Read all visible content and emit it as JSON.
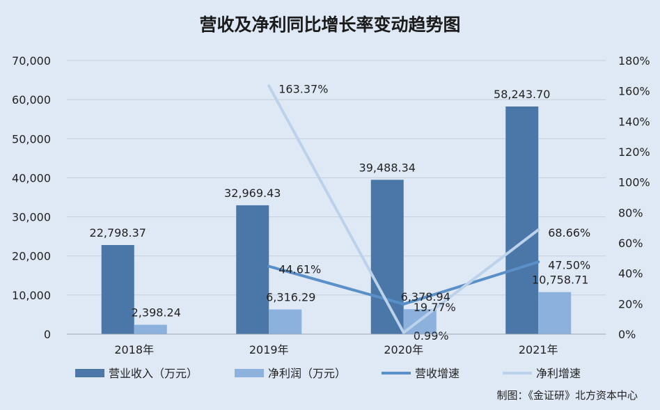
{
  "chart_data": {
    "type": "bar",
    "title": "营收及净利同比增长率变动趋势图",
    "categories": [
      "2018年",
      "2019年",
      "2020年",
      "2021年"
    ],
    "y_left": {
      "ticks": [
        "70,000",
        "60,000",
        "50,000",
        "40,000",
        "30,000",
        "20,000",
        "10,000",
        "0"
      ],
      "min": 0,
      "max": 70000
    },
    "y_right": {
      "ticks": [
        "180%",
        "160%",
        "140%",
        "120%",
        "100%",
        "80%",
        "60%",
        "40%",
        "20%",
        "0%"
      ],
      "min": 0,
      "max": 180
    },
    "bar_series": [
      {
        "name": "营业收入（万元）",
        "values": [
          22798.37,
          32969.43,
          39488.34,
          58243.7
        ],
        "labels": [
          "22,798.37",
          "32,969.43",
          "39,488.34",
          "58,243.70"
        ],
        "color": "#4a76a8"
      },
      {
        "name": "净利润（万元）",
        "values": [
          2398.24,
          6316.29,
          6378.94,
          10758.71
        ],
        "labels": [
          "2,398.24",
          "6,316.29",
          "6,378.94",
          "10,758.71"
        ],
        "color": "#8db1dd"
      }
    ],
    "line_series": [
      {
        "name": "营收增速",
        "values": [
          null,
          44.61,
          19.77,
          47.5
        ],
        "labels": [
          "",
          "44.61%",
          "19.77%",
          "47.50%"
        ],
        "color": "#5b8fc7"
      },
      {
        "name": "净利增速",
        "values": [
          null,
          163.37,
          0.99,
          68.66
        ],
        "labels": [
          "",
          "163.37%",
          "0.99%",
          "68.66%"
        ],
        "color": "#bcd1ea"
      }
    ],
    "grid": true,
    "legend_position": "bottom"
  },
  "source": "制图：《金证研》北方资本中心"
}
